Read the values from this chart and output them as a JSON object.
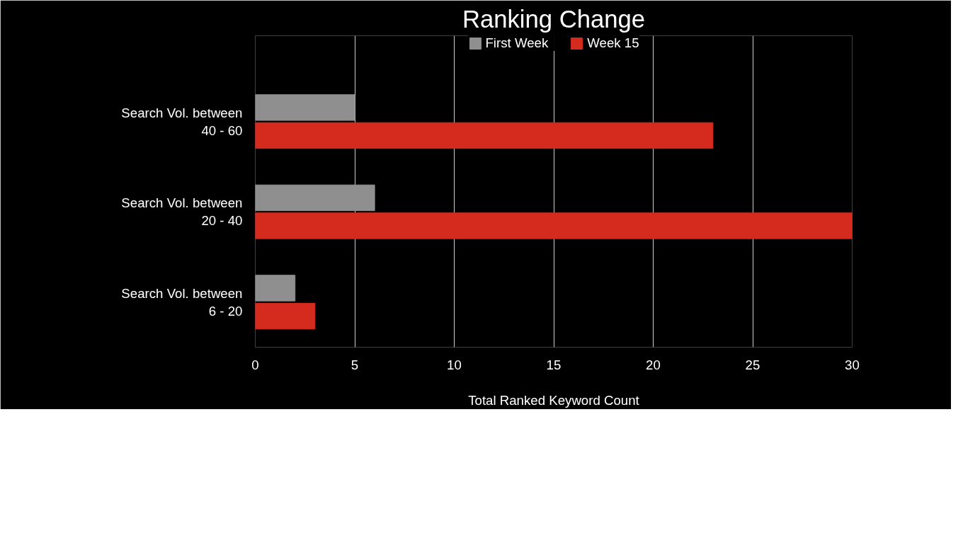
{
  "chart_data": {
    "type": "bar",
    "orientation": "horizontal",
    "title": "Ranking Change",
    "xlabel": "Total Ranked Keyword Count",
    "categories": [
      "Search Vol. between\n40 - 60",
      "Search Vol. between\n20 - 40",
      "Search Vol. between\n6 - 20"
    ],
    "series": [
      {
        "name": "First Week",
        "color": "#8f8f8f",
        "values": [
          5,
          6,
          2
        ]
      },
      {
        "name": "Week 15",
        "color": "#d42b1e",
        "values": [
          23,
          30,
          3
        ]
      }
    ],
    "xlim": [
      0,
      30
    ],
    "xticks": [
      0,
      5,
      10,
      15,
      20,
      25,
      30
    ],
    "grid": "x",
    "legend": "top"
  }
}
